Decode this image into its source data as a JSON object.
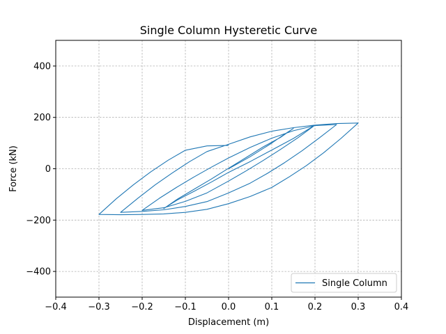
{
  "chart_data": {
    "type": "line",
    "title": "Single Column Hysteretic Curve",
    "xlabel": "Displacement (m)",
    "ylabel": "Force (kN)",
    "xlim": [
      -0.4,
      0.4
    ],
    "ylim": [
      -500,
      500
    ],
    "xticks": [
      -0.4,
      -0.3,
      -0.2,
      -0.1,
      0.0,
      0.1,
      0.2,
      0.3,
      0.4
    ],
    "yticks": [
      -400,
      -200,
      0,
      200,
      400
    ],
    "xtick_labels": [
      "−0.4",
      "−0.3",
      "−0.2",
      "−0.1",
      "0.0",
      "0.1",
      "0.2",
      "0.3",
      "0.4"
    ],
    "ytick_labels": [
      "−400",
      "−200",
      "0",
      "200",
      "400"
    ],
    "grid": true,
    "legend_position": "lower-right",
    "series": [
      {
        "name": "Single Column",
        "color": "#1f77b4",
        "x": [
          0,
          0.05,
          0.1,
          0.13,
          0.15,
          0.12,
          0.08,
          0.04,
          0.0,
          -0.04,
          -0.08,
          -0.12,
          -0.15,
          -0.12,
          -0.08,
          -0.04,
          0.0,
          0.05,
          0.1,
          0.15,
          0.2,
          0.16,
          0.12,
          0.08,
          0.04,
          0.0,
          -0.05,
          -0.1,
          -0.15,
          -0.2,
          -0.16,
          -0.12,
          -0.08,
          -0.04,
          0.0,
          0.05,
          0.1,
          0.15,
          0.2,
          0.25,
          0.21,
          0.17,
          0.13,
          0.09,
          0.05,
          0.0,
          -0.05,
          -0.1,
          -0.15,
          -0.2,
          -0.25,
          -0.21,
          -0.17,
          -0.13,
          -0.09,
          -0.05,
          0.0,
          0.05,
          0.1,
          0.15,
          0.2,
          0.25,
          0.3,
          0.26,
          0.22,
          0.18,
          0.14,
          0.1,
          0.05,
          0.0,
          -0.05,
          -0.1,
          -0.15,
          -0.2,
          -0.25,
          -0.3,
          -0.26,
          -0.22,
          -0.18,
          -0.14,
          -0.1,
          -0.05,
          0.0
        ],
        "y": [
          0,
          47,
          100,
          135,
          157,
          122,
          85,
          43,
          2,
          -40,
          -80,
          -120,
          -155,
          -123,
          -88,
          -52,
          -14,
          28,
          73,
          118,
          170,
          120,
          75,
          32,
          -9,
          -48,
          -94,
          -127,
          -152,
          -162,
          -115,
          -72,
          -32,
          6,
          42,
          83,
          119,
          148,
          168,
          172,
          120,
          70,
          24,
          -18,
          -56,
          -94,
          -128,
          -147,
          -160,
          -166,
          -170,
          -115,
          -63,
          -16,
          28,
          67,
          95,
          124,
          146,
          160,
          170,
          176,
          178,
          118,
          62,
          12,
          -32,
          -73,
          -108,
          -136,
          -158,
          -170,
          -176,
          -178,
          -179,
          -178,
          -117,
          -62,
          -12,
          33,
          72,
          89,
          91
        ]
      }
    ]
  }
}
